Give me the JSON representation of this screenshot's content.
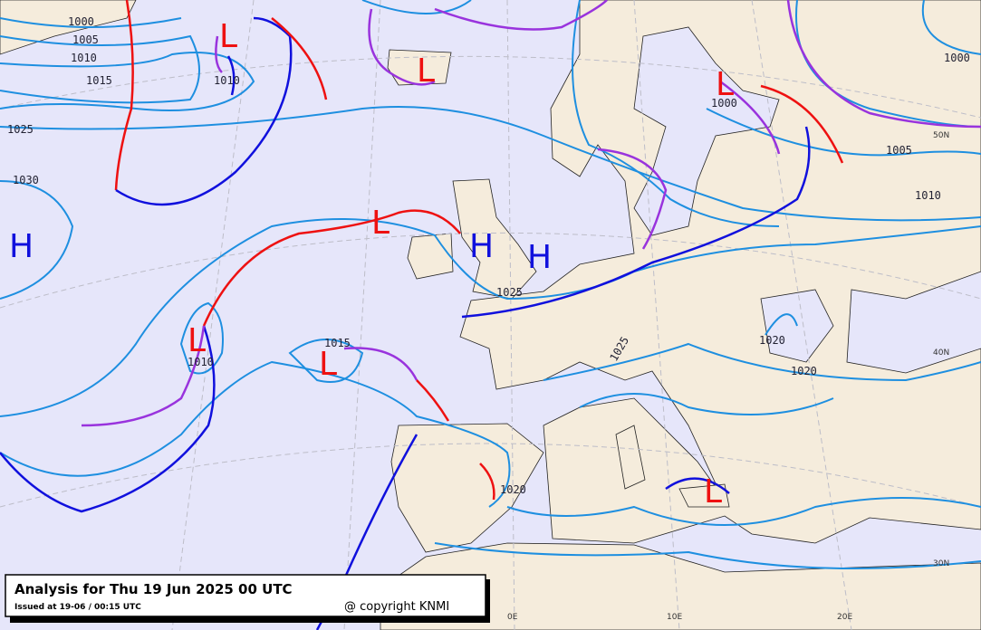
{
  "title": "Analysis for Thu 19 Jun 2025 00 UTC",
  "issued": "Issued at 19-06 / 00:15 UTC",
  "copyright": "@ copyright KNMI",
  "pressure_labels": [
    "1000",
    "1005",
    "1010",
    "1015",
    "1025",
    "1030",
    "1010",
    "1000",
    "1000",
    "1005",
    "1010",
    "1015",
    "1010",
    "1020",
    "1020",
    "1020",
    "1025",
    "1025"
  ],
  "pressure_centers": [
    "L",
    "L",
    "L",
    "L",
    "L",
    "L",
    "L",
    "H",
    "H",
    "H"
  ],
  "grid_labels": [
    "50N",
    "40N",
    "30N",
    "0E",
    "10E",
    "20E"
  ]
}
